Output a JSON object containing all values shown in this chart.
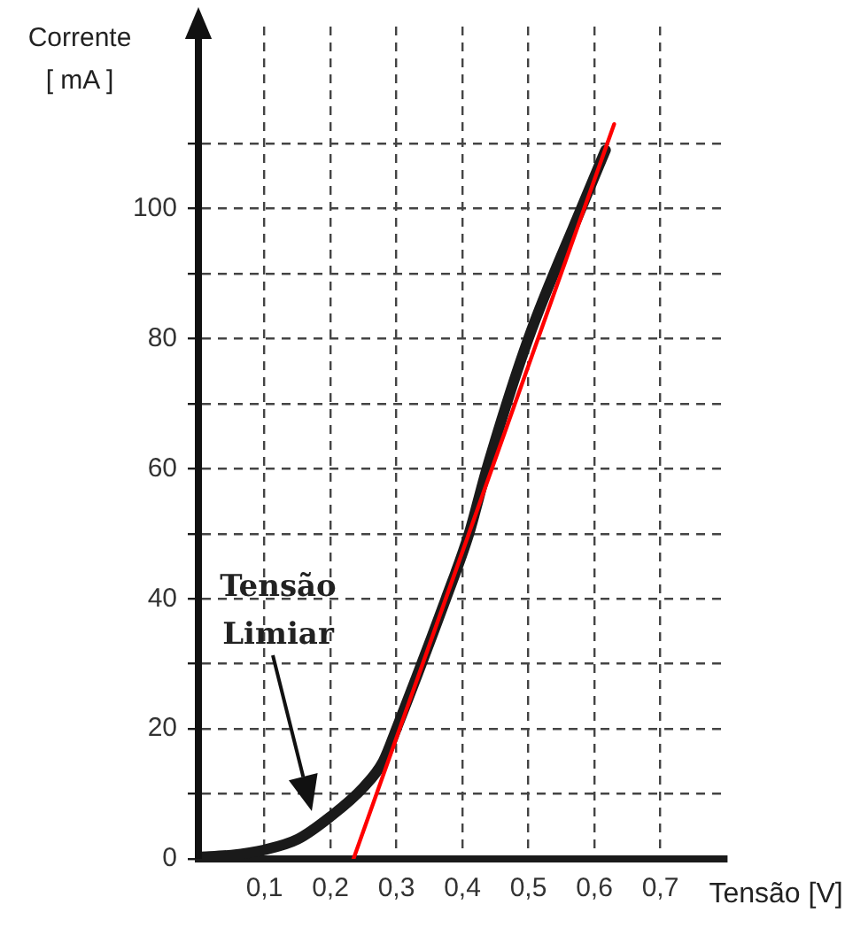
{
  "chart_data": {
    "type": "line",
    "xlabel": "Tensão [V]",
    "ylabel": "Corrente [ mA ]",
    "xlim": [
      0,
      0.8
    ],
    "ylim": [
      0,
      128
    ],
    "xticks": [
      {
        "value": 0.1,
        "label": "0,1"
      },
      {
        "value": 0.2,
        "label": "0,2"
      },
      {
        "value": 0.3,
        "label": "0,3"
      },
      {
        "value": 0.4,
        "label": "0,4"
      },
      {
        "value": 0.5,
        "label": "0,5"
      },
      {
        "value": 0.6,
        "label": "0,6"
      },
      {
        "value": 0.7,
        "label": "0,7"
      }
    ],
    "yticks": [
      0,
      {
        "value": 10,
        "label": null
      },
      20,
      {
        "value": 30,
        "label": null
      },
      40,
      {
        "value": 50,
        "label": null
      },
      60,
      {
        "value": 70,
        "label": null
      },
      80,
      {
        "value": 90,
        "label": null
      },
      100,
      {
        "value": 110,
        "label": null
      }
    ],
    "grid": true,
    "line_style": "solid",
    "marker": "none",
    "legend": false,
    "series": [
      {
        "color": "#1a1a1a",
        "x": [
          0,
          0.05,
          0.1,
          0.15,
          0.2,
          0.25,
          0.28,
          0.3,
          0.375,
          0.41,
          0.437,
          0.5,
          0.58,
          0.617
        ],
        "values": [
          0.3,
          0.6,
          1.4,
          3,
          6.5,
          11,
          15,
          20,
          40,
          50,
          60,
          80,
          100,
          109
        ]
      },
      {
        "color": "#ff0000",
        "x": [
          0.235,
          0.63
        ],
        "values": [
          0,
          113
        ]
      }
    ],
    "annotations": [
      "Tensão Limiar"
    ]
  }
}
